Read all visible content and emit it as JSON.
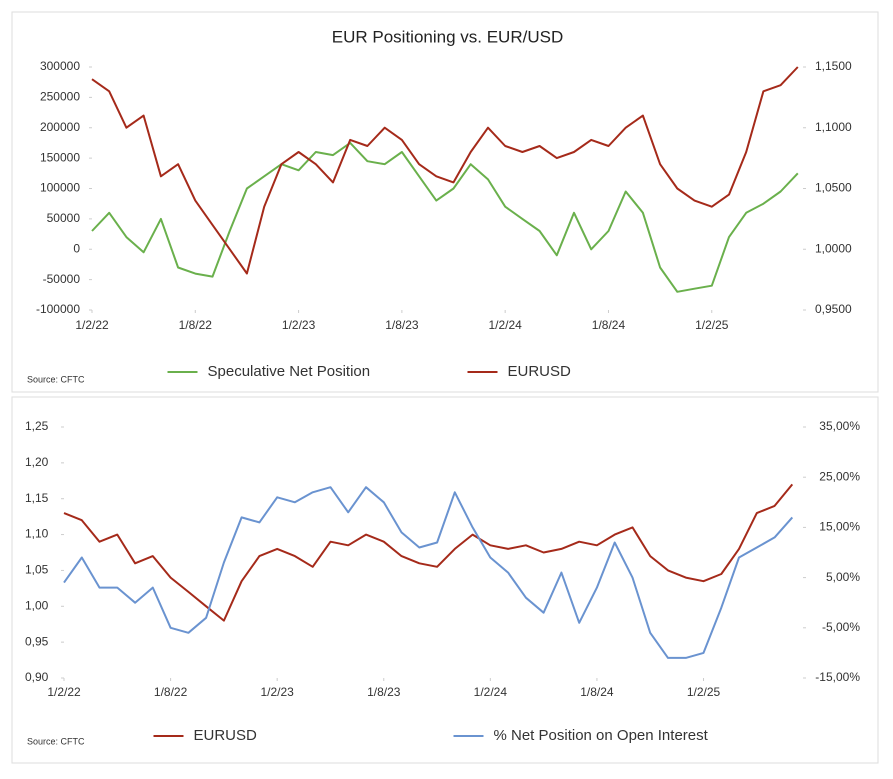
{
  "chart_data": [
    {
      "type": "line",
      "title": "EUR Positioning vs. EUR/USD",
      "source": "Source: CFTC",
      "x": [
        0,
        1,
        2,
        3,
        4,
        5,
        6,
        7,
        8,
        9,
        10,
        11,
        12,
        13,
        14,
        15,
        16,
        17,
        18,
        19,
        20,
        21,
        22,
        23,
        24,
        25,
        26,
        27,
        28,
        29,
        30,
        31,
        32,
        33,
        34,
        35,
        36,
        37,
        38,
        39,
        40,
        41
      ],
      "xlim": [
        0,
        41.3
      ],
      "xticks": [
        {
          "value": 0,
          "label": "1/2/22"
        },
        {
          "value": 6,
          "label": "1/8/22"
        },
        {
          "value": 12,
          "label": "1/2/23"
        },
        {
          "value": 18,
          "label": "1/8/23"
        },
        {
          "value": 24,
          "label": "1/2/24"
        },
        {
          "value": 30,
          "label": "1/8/24"
        },
        {
          "value": 36,
          "label": "1/2/25"
        }
      ],
      "ylim": [
        -100000,
        300000
      ],
      "yticks": [
        -100000,
        -50000,
        0,
        50000,
        100000,
        150000,
        200000,
        250000,
        300000
      ],
      "y2lim": [
        0.95,
        1.15
      ],
      "y2ticks": [
        {
          "value": 0.95,
          "label": "0,9500"
        },
        {
          "value": 1.0,
          "label": "1,0000"
        },
        {
          "value": 1.05,
          "label": "1,0500"
        },
        {
          "value": 1.1,
          "label": "1,1000"
        },
        {
          "value": 1.15,
          "label": "1,1500"
        }
      ],
      "series": [
        {
          "name": "Speculative Net Position",
          "color": "#6ab04c",
          "values": [
            30000,
            60000,
            20000,
            -5000,
            50000,
            -30000,
            -40000,
            -45000,
            30000,
            100000,
            120000,
            140000,
            130000,
            160000,
            155000,
            175000,
            145000,
            140000,
            160000,
            120000,
            80000,
            100000,
            140000,
            115000,
            70000,
            50000,
            30000,
            -10000,
            60000,
            0,
            30000,
            95000,
            60000,
            -30000,
            -70000,
            -65000,
            -60000,
            20000,
            60000,
            75000,
            95000,
            125000
          ]
        },
        {
          "name": "EURUSD",
          "color": "#a52a1a",
          "axis": "y2",
          "values": [
            1.14,
            1.13,
            1.1,
            1.11,
            1.06,
            1.07,
            1.04,
            1.02,
            1.0,
            0.98,
            1.035,
            1.07,
            1.08,
            1.07,
            1.055,
            1.09,
            1.085,
            1.1,
            1.09,
            1.07,
            1.06,
            1.055,
            1.08,
            1.1,
            1.085,
            1.08,
            1.085,
            1.075,
            1.08,
            1.09,
            1.085,
            1.1,
            1.11,
            1.07,
            1.05,
            1.04,
            1.035,
            1.045,
            1.08,
            1.13,
            1.135,
            1.15
          ]
        }
      ]
    },
    {
      "type": "line",
      "source": "Source: CFTC",
      "x": [
        0,
        1,
        2,
        3,
        4,
        5,
        6,
        7,
        8,
        9,
        10,
        11,
        12,
        13,
        14,
        15,
        16,
        17,
        18,
        19,
        20,
        21,
        22,
        23,
        24,
        25,
        26,
        27,
        28,
        29,
        30,
        31,
        32,
        33,
        34,
        35,
        36,
        37,
        38,
        39,
        40,
        41
      ],
      "xlim": [
        0,
        41.6
      ],
      "xticks": [
        {
          "value": 0,
          "label": "1/2/22"
        },
        {
          "value": 6,
          "label": "1/8/22"
        },
        {
          "value": 12,
          "label": "1/2/23"
        },
        {
          "value": 18,
          "label": "1/8/23"
        },
        {
          "value": 24,
          "label": "1/2/24"
        },
        {
          "value": 30,
          "label": "1/8/24"
        },
        {
          "value": 36,
          "label": "1/2/25"
        }
      ],
      "ylim": [
        0.9,
        1.25
      ],
      "yticks": [
        {
          "value": 0.9,
          "label": "0,90"
        },
        {
          "value": 0.95,
          "label": "0,95"
        },
        {
          "value": 1.0,
          "label": "1,00"
        },
        {
          "value": 1.05,
          "label": "1,05"
        },
        {
          "value": 1.1,
          "label": "1,10"
        },
        {
          "value": 1.15,
          "label": "1,15"
        },
        {
          "value": 1.2,
          "label": "1,20"
        },
        {
          "value": 1.25,
          "label": "1,25"
        }
      ],
      "y2lim": [
        -15,
        35
      ],
      "y2ticks": [
        {
          "value": -15,
          "label": "-15,00%"
        },
        {
          "value": -5,
          "label": "-5,00%"
        },
        {
          "value": 5,
          "label": "5,00%"
        },
        {
          "value": 15,
          "label": "15,00%"
        },
        {
          "value": 25,
          "label": "25,00%"
        },
        {
          "value": 35,
          "label": "35,00%"
        }
      ],
      "series": [
        {
          "name": "EURUSD",
          "color": "#a52a1a",
          "values": [
            1.13,
            1.12,
            1.09,
            1.1,
            1.06,
            1.07,
            1.04,
            1.02,
            1.0,
            0.98,
            1.035,
            1.07,
            1.08,
            1.07,
            1.055,
            1.09,
            1.085,
            1.1,
            1.09,
            1.07,
            1.06,
            1.055,
            1.08,
            1.1,
            1.085,
            1.08,
            1.085,
            1.075,
            1.08,
            1.09,
            1.085,
            1.1,
            1.11,
            1.07,
            1.05,
            1.04,
            1.035,
            1.045,
            1.08,
            1.13,
            1.14,
            1.17
          ]
        },
        {
          "name": "% Net Position on Open Interest",
          "color": "#6a93d0",
          "axis": "y2",
          "values": [
            4,
            9,
            3,
            3,
            0,
            3,
            -5,
            -6,
            -3,
            8,
            17,
            16,
            21,
            20,
            22,
            23,
            18,
            23,
            20,
            14,
            11,
            12,
            22,
            15,
            9,
            6,
            1,
            -2,
            6,
            -4,
            3,
            12,
            5,
            -6,
            -11,
            -11,
            -10,
            -1,
            9,
            11,
            13,
            17
          ]
        }
      ]
    }
  ]
}
